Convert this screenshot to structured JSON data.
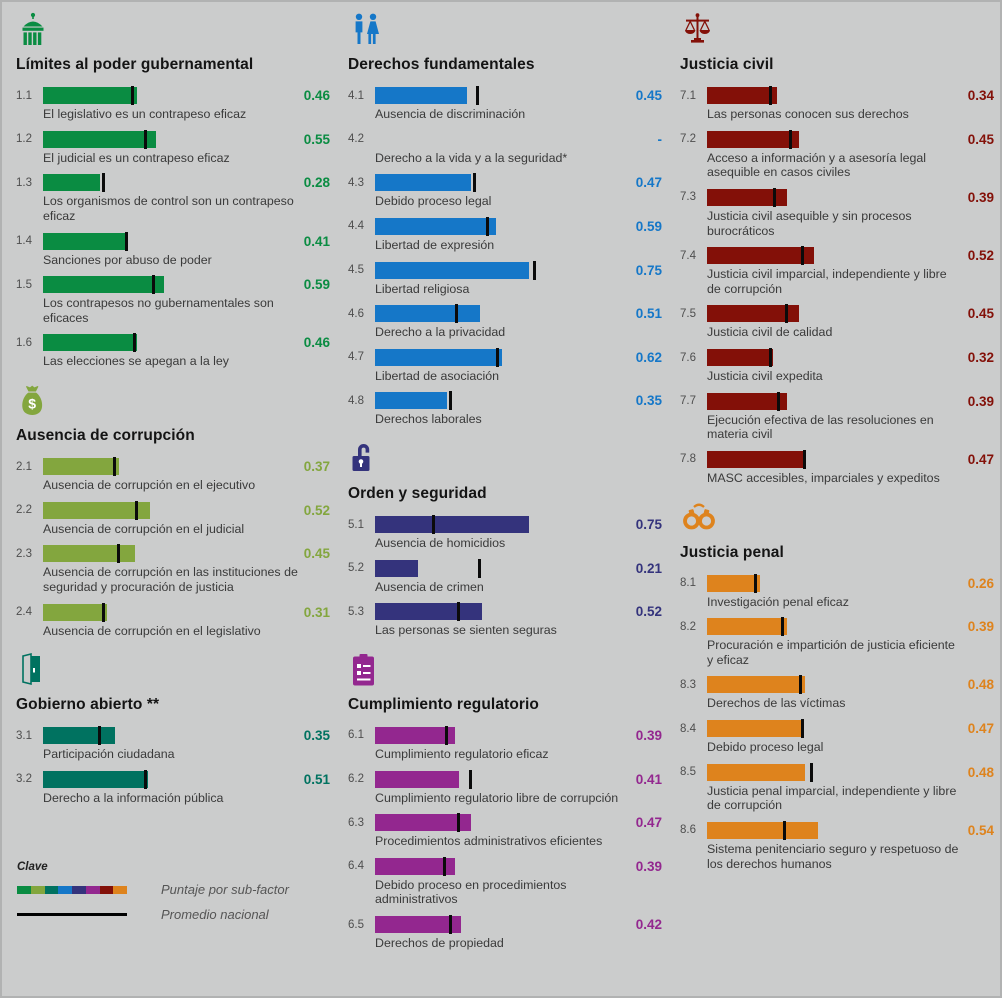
{
  "page": {
    "background": "#cbcccc"
  },
  "legend": {
    "heading": "Clave",
    "score_label": "Puntaje por sub-factor",
    "average_label": "Promedio nacional",
    "average_color": "#000000",
    "swatch_colors": [
      "#0A8C42",
      "#83A63E",
      "#007260",
      "#1577C8",
      "#34337C",
      "#93278F",
      "#831008",
      "#DE831D"
    ]
  },
  "chart_data": {
    "type": "bar",
    "orientation": "horizontal",
    "xlim": [
      0,
      1
    ],
    "series_note": "bar = Puntaje por sub-factor, black tick = Promedio nacional",
    "factors": [
      {
        "id": "1",
        "title": "Límites al poder gubernamental",
        "color": "#0A8C42",
        "icon": "capitol-building-icon",
        "subfactors": [
          {
            "num": "1.1",
            "label": "El legislativo es un contrapeso eficaz",
            "score": 0.46,
            "score_text": "0.46",
            "average": 0.43
          },
          {
            "num": "1.2",
            "label": "El judicial es un contrapeso eficaz",
            "score": 0.55,
            "score_text": "0.55",
            "average": 0.49
          },
          {
            "num": "1.3",
            "label": "Los organismos de control son un contrapeso eficaz",
            "score": 0.28,
            "score_text": "0.28",
            "average": 0.29
          },
          {
            "num": "1.4",
            "label": "Sanciones por abuso de poder",
            "score": 0.41,
            "score_text": "0.41",
            "average": 0.4
          },
          {
            "num": "1.5",
            "label": "Los contrapesos no gubernamentales son eficaces",
            "score": 0.59,
            "score_text": "0.59",
            "average": 0.53
          },
          {
            "num": "1.6",
            "label": "Las elecciones se apegan a la ley",
            "score": 0.46,
            "score_text": "0.46",
            "average": 0.44
          }
        ]
      },
      {
        "id": "2",
        "title": "Ausencia de corrupción",
        "color": "#83A63E",
        "icon": "money-bag-icon",
        "subfactors": [
          {
            "num": "2.1",
            "label": "Ausencia de corrupción en el ejecutivo",
            "score": 0.37,
            "score_text": "0.37",
            "average": 0.34
          },
          {
            "num": "2.2",
            "label": "Ausencia de corrupción en el judicial",
            "score": 0.52,
            "score_text": "0.52",
            "average": 0.45
          },
          {
            "num": "2.3",
            "label": "Ausencia de corrupción en las instituciones de seguridad y procuración de justicia",
            "score": 0.45,
            "score_text": "0.45",
            "average": 0.36
          },
          {
            "num": "2.4",
            "label": "Ausencia de corrupción en el legislativo",
            "score": 0.31,
            "score_text": "0.31",
            "average": 0.29
          }
        ]
      },
      {
        "id": "3",
        "title": "Gobierno abierto **",
        "color": "#007260",
        "icon": "open-door-icon",
        "subfactors": [
          {
            "num": "3.1",
            "label": "Participación ciudadana",
            "score": 0.35,
            "score_text": "0.35",
            "average": 0.27
          },
          {
            "num": "3.2",
            "label": "Derecho a la información pública",
            "score": 0.51,
            "score_text": "0.51",
            "average": 0.49
          }
        ]
      },
      {
        "id": "4",
        "title": "Derechos fundamentales",
        "color": "#1577C8",
        "icon": "people-icon",
        "subfactors": [
          {
            "num": "4.1",
            "label": "Ausencia de discriminación",
            "score": 0.45,
            "score_text": "0.45",
            "average": 0.49
          },
          {
            "num": "4.2",
            "label": "Derecho a la vida y a la seguridad*",
            "score": null,
            "score_text": "-",
            "average": null
          },
          {
            "num": "4.3",
            "label": "Debido proceso legal",
            "score": 0.47,
            "score_text": "0.47",
            "average": 0.48
          },
          {
            "num": "4.4",
            "label": "Libertad de expresión",
            "score": 0.59,
            "score_text": "0.59",
            "average": 0.54
          },
          {
            "num": "4.5",
            "label": "Libertad religiosa",
            "score": 0.75,
            "score_text": "0.75",
            "average": 0.77
          },
          {
            "num": "4.6",
            "label": "Derecho a la privacidad",
            "score": 0.51,
            "score_text": "0.51",
            "average": 0.39
          },
          {
            "num": "4.7",
            "label": "Libertad de asociación",
            "score": 0.62,
            "score_text": "0.62",
            "average": 0.59
          },
          {
            "num": "4.8",
            "label": "Derechos laborales",
            "score": 0.35,
            "score_text": "0.35",
            "average": 0.36
          }
        ]
      },
      {
        "id": "5",
        "title": "Orden y seguridad",
        "color": "#34337C",
        "icon": "open-padlock-icon",
        "subfactors": [
          {
            "num": "5.1",
            "label": "Ausencia de homicidios",
            "score": 0.75,
            "score_text": "0.75",
            "average": 0.28
          },
          {
            "num": "5.2",
            "label": "Ausencia de crimen",
            "score": 0.21,
            "score_text": "0.21",
            "average": 0.5
          },
          {
            "num": "5.3",
            "label": "Las personas se sienten seguras",
            "score": 0.52,
            "score_text": "0.52",
            "average": 0.4
          }
        ]
      },
      {
        "id": "6",
        "title": "Cumplimiento regulatorio",
        "color": "#93278F",
        "icon": "clipboard-icon",
        "subfactors": [
          {
            "num": "6.1",
            "label": "Cumplimiento regulatorio eficaz",
            "score": 0.39,
            "score_text": "0.39",
            "average": 0.34
          },
          {
            "num": "6.2",
            "label": "Cumplimiento regulatorio libre de corrupción",
            "score": 0.41,
            "score_text": "0.41",
            "average": 0.46
          },
          {
            "num": "6.3",
            "label": "Procedimientos administrativos eficientes",
            "score": 0.47,
            "score_text": "0.47",
            "average": 0.4
          },
          {
            "num": "6.4",
            "label": "Debido proceso en procedimientos administrativos",
            "score": 0.39,
            "score_text": "0.39",
            "average": 0.33
          },
          {
            "num": "6.5",
            "label": "Derechos de propiedad",
            "score": 0.42,
            "score_text": "0.42",
            "average": 0.36
          }
        ]
      },
      {
        "id": "7",
        "title": "Justicia civil",
        "color": "#831008",
        "icon": "scales-of-justice-icon",
        "subfactors": [
          {
            "num": "7.1",
            "label": "Las personas conocen sus derechos",
            "score": 0.34,
            "score_text": "0.34",
            "average": 0.3
          },
          {
            "num": "7.2",
            "label": "Acceso a información y a asesoría legal asequible en casos civiles",
            "score": 0.45,
            "score_text": "0.45",
            "average": 0.4
          },
          {
            "num": "7.3",
            "label": "Justicia civil asequible y sin procesos burocráticos",
            "score": 0.39,
            "score_text": "0.39",
            "average": 0.32
          },
          {
            "num": "7.4",
            "label": "Justicia civil imparcial, independiente y libre de corrupción",
            "score": 0.52,
            "score_text": "0.52",
            "average": 0.46
          },
          {
            "num": "7.5",
            "label": "Justicia civil de calidad",
            "score": 0.45,
            "score_text": "0.45",
            "average": 0.38
          },
          {
            "num": "7.6",
            "label": "Justicia civil expedita",
            "score": 0.32,
            "score_text": "0.32",
            "average": 0.3
          },
          {
            "num": "7.7",
            "label": "Ejecución efectiva de las resoluciones en materia civil",
            "score": 0.39,
            "score_text": "0.39",
            "average": 0.34
          },
          {
            "num": "7.8",
            "label": "MASC accesibles, imparciales y expeditos",
            "score": 0.47,
            "score_text": "0.47",
            "average": 0.47
          }
        ]
      },
      {
        "id": "8",
        "title": "Justicia penal",
        "color": "#DE831D",
        "icon": "handcuffs-icon",
        "subfactors": [
          {
            "num": "8.1",
            "label": "Investigación penal eficaz",
            "score": 0.26,
            "score_text": "0.26",
            "average": 0.23
          },
          {
            "num": "8.2",
            "label": "Procuración e impartición de justicia eficiente y eficaz",
            "score": 0.39,
            "score_text": "0.39",
            "average": 0.36
          },
          {
            "num": "8.3",
            "label": "Derechos de las víctimas",
            "score": 0.48,
            "score_text": "0.48",
            "average": 0.45
          },
          {
            "num": "8.4",
            "label": "Debido proceso legal",
            "score": 0.47,
            "score_text": "0.47",
            "average": 0.46
          },
          {
            "num": "8.5",
            "label": "Justicia penal imparcial, independiente y libre de corrupción",
            "score": 0.48,
            "score_text": "0.48",
            "average": 0.5
          },
          {
            "num": "8.6",
            "label": "Sistema penitenciario seguro y respetuoso de los derechos humanos",
            "score": 0.54,
            "score_text": "0.54",
            "average": 0.37
          }
        ]
      }
    ]
  }
}
